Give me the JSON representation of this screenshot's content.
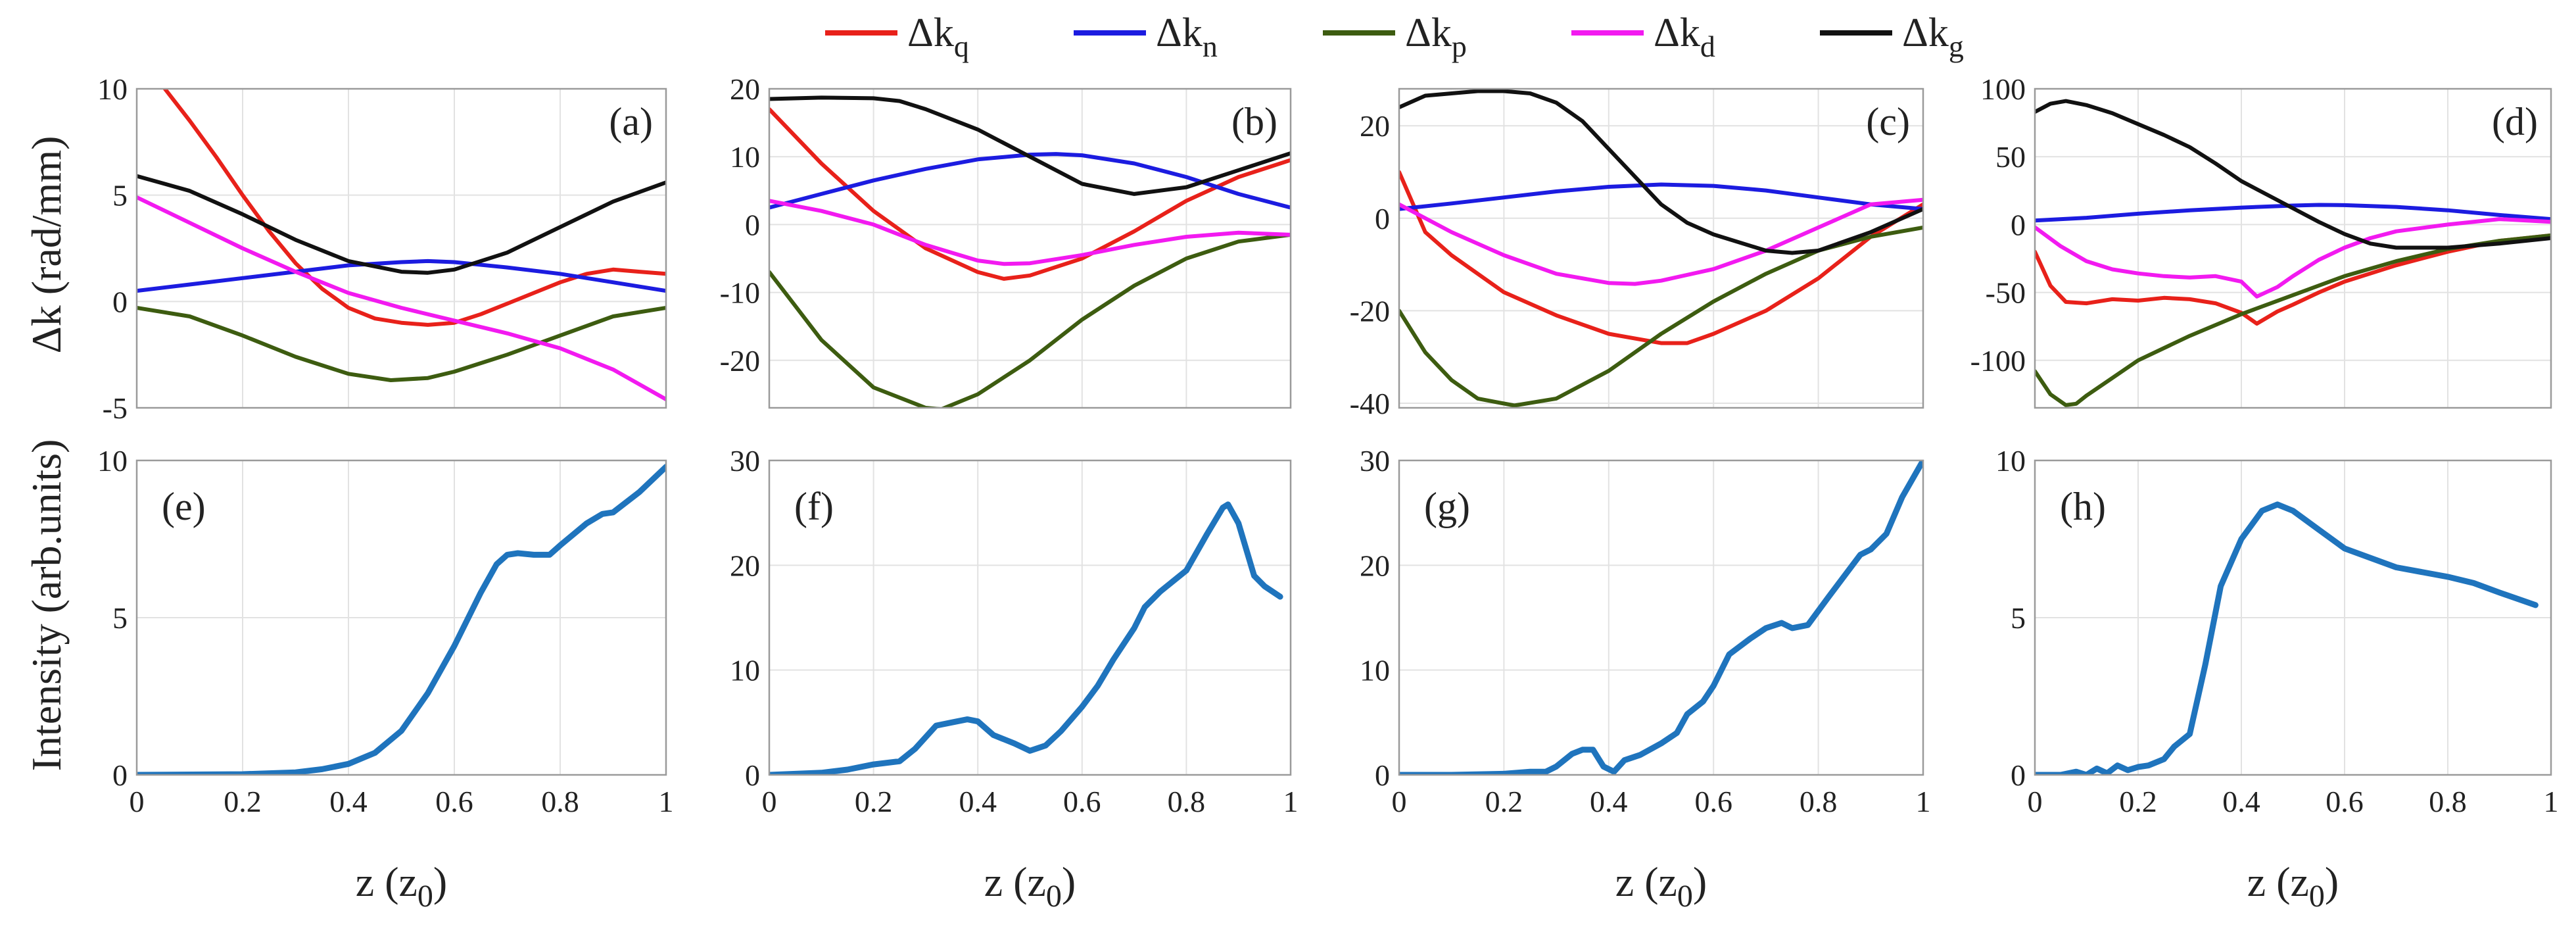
{
  "legend": [
    {
      "name": "Δk_q",
      "base": "Δk",
      "sub": "q",
      "color": "#e8211a"
    },
    {
      "name": "Δk_n",
      "base": "Δk",
      "sub": "n",
      "color": "#1c1ce0"
    },
    {
      "name": "Δk_p",
      "base": "Δk",
      "sub": "p",
      "color": "#3d5c10"
    },
    {
      "name": "Δk_d",
      "base": "Δk",
      "sub": "d",
      "color": "#f21af0"
    },
    {
      "name": "Δk_g",
      "base": "Δk",
      "sub": "g",
      "color": "#111111"
    }
  ],
  "ylabel_top": "Δk (rad/mm)",
  "ylabel_bottom": "Intensity (arb.units)",
  "xlabel": {
    "base": "z (z",
    "sub": "0",
    "end": ")"
  },
  "intensity_color": "#1f74bd",
  "chart_data": [
    {
      "panel": "(a)",
      "type": "line",
      "xlim": [
        0,
        1
      ],
      "ylim": [
        -5,
        10
      ],
      "xticks": [
        "0",
        "0.2",
        "0.4",
        "0.6",
        "0.8",
        "1"
      ],
      "xticks_shown": false,
      "yticks": [
        -5,
        0,
        5,
        10
      ],
      "series": [
        {
          "name": "Δk_q",
          "x": [
            0,
            0.05,
            0.1,
            0.15,
            0.2,
            0.25,
            0.3,
            0.35,
            0.4,
            0.45,
            0.5,
            0.55,
            0.6,
            0.65,
            0.7,
            0.75,
            0.8,
            0.85,
            0.9,
            0.95,
            1.0
          ],
          "y": [
            11,
            10.1,
            8.5,
            6.8,
            5,
            3.3,
            1.8,
            0.6,
            -0.3,
            -0.8,
            -1.0,
            -1.1,
            -1.0,
            -0.6,
            -0.1,
            0.4,
            0.9,
            1.3,
            1.5,
            1.4,
            1.3
          ]
        },
        {
          "name": "Δk_n",
          "x": [
            0,
            0.1,
            0.2,
            0.3,
            0.4,
            0.5,
            0.55,
            0.6,
            0.7,
            0.8,
            0.9,
            1.0
          ],
          "y": [
            0.5,
            0.8,
            1.1,
            1.4,
            1.7,
            1.85,
            1.9,
            1.85,
            1.6,
            1.3,
            0.9,
            0.5
          ]
        },
        {
          "name": "Δk_p",
          "x": [
            0,
            0.1,
            0.2,
            0.3,
            0.4,
            0.48,
            0.55,
            0.6,
            0.7,
            0.8,
            0.9,
            1.0
          ],
          "y": [
            -0.3,
            -0.7,
            -1.6,
            -2.6,
            -3.4,
            -3.7,
            -3.6,
            -3.3,
            -2.5,
            -1.6,
            -0.7,
            -0.3
          ]
        },
        {
          "name": "Δk_d",
          "x": [
            0,
            0.1,
            0.2,
            0.3,
            0.4,
            0.5,
            0.6,
            0.7,
            0.8,
            0.9,
            1.0
          ],
          "y": [
            4.9,
            3.7,
            2.5,
            1.4,
            0.4,
            -0.3,
            -0.9,
            -1.5,
            -2.2,
            -3.2,
            -4.6
          ]
        },
        {
          "name": "Δk_g",
          "x": [
            0,
            0.1,
            0.2,
            0.3,
            0.4,
            0.5,
            0.55,
            0.6,
            0.7,
            0.8,
            0.9,
            1.0
          ],
          "y": [
            5.9,
            5.2,
            4.1,
            2.9,
            1.9,
            1.4,
            1.35,
            1.5,
            2.3,
            3.5,
            4.7,
            5.6
          ]
        }
      ]
    },
    {
      "panel": "(b)",
      "type": "line",
      "xlim": [
        0,
        1
      ],
      "ylim": [
        -27,
        20
      ],
      "xticks": [
        "0",
        "0.2",
        "0.4",
        "0.6",
        "0.8",
        "1"
      ],
      "xticks_shown": false,
      "yticks": [
        -20,
        -10,
        0,
        10,
        20
      ],
      "series": [
        {
          "name": "Δk_q",
          "x": [
            0,
            0.1,
            0.2,
            0.3,
            0.4,
            0.45,
            0.5,
            0.6,
            0.7,
            0.8,
            0.9,
            1.0
          ],
          "y": [
            17,
            9,
            2,
            -3.5,
            -7,
            -8,
            -7.5,
            -5,
            -1,
            3.5,
            7,
            9.5
          ]
        },
        {
          "name": "Δk_n",
          "x": [
            0,
            0.1,
            0.2,
            0.3,
            0.4,
            0.5,
            0.55,
            0.6,
            0.7,
            0.8,
            0.9,
            1.0
          ],
          "y": [
            2.5,
            4.5,
            6.5,
            8.2,
            9.6,
            10.3,
            10.4,
            10.2,
            9,
            7,
            4.5,
            2.5
          ]
        },
        {
          "name": "Δk_p",
          "x": [
            0,
            0.05,
            0.1,
            0.2,
            0.3,
            0.33,
            0.4,
            0.5,
            0.6,
            0.7,
            0.8,
            0.9,
            1.0
          ],
          "y": [
            -7,
            -12,
            -17,
            -24,
            -27,
            -27.2,
            -25,
            -20,
            -14,
            -9,
            -5,
            -2.5,
            -1.5
          ]
        },
        {
          "name": "Δk_d",
          "x": [
            0,
            0.1,
            0.2,
            0.3,
            0.4,
            0.45,
            0.5,
            0.6,
            0.7,
            0.8,
            0.9,
            1.0
          ],
          "y": [
            3.5,
            2,
            0,
            -3,
            -5.3,
            -5.8,
            -5.7,
            -4.5,
            -3,
            -1.8,
            -1.2,
            -1.5
          ]
        },
        {
          "name": "Δk_g",
          "x": [
            0,
            0.1,
            0.2,
            0.25,
            0.3,
            0.4,
            0.5,
            0.6,
            0.7,
            0.8,
            0.9,
            1.0
          ],
          "y": [
            18.5,
            18.7,
            18.6,
            18.2,
            17,
            14,
            10,
            6,
            4.5,
            5.5,
            8,
            10.5
          ]
        }
      ]
    },
    {
      "panel": "(c)",
      "type": "line",
      "xlim": [
        0,
        1
      ],
      "ylim": [
        -41,
        28
      ],
      "xticks": [
        "0",
        "0.2",
        "0.4",
        "0.6",
        "0.8",
        "1"
      ],
      "xticks_shown": false,
      "yticks": [
        -40,
        -20,
        0,
        20
      ],
      "series": [
        {
          "name": "Δk_q",
          "x": [
            0,
            0.05,
            0.1,
            0.2,
            0.3,
            0.4,
            0.5,
            0.55,
            0.6,
            0.7,
            0.8,
            0.9,
            1.0
          ],
          "y": [
            10,
            -3,
            -8,
            -16,
            -21,
            -25,
            -27,
            -27,
            -25,
            -20,
            -13,
            -4,
            3
          ]
        },
        {
          "name": "Δk_n",
          "x": [
            0,
            0.1,
            0.2,
            0.3,
            0.4,
            0.5,
            0.6,
            0.7,
            0.8,
            0.9,
            1.0
          ],
          "y": [
            2,
            3.2,
            4.5,
            5.8,
            6.8,
            7.3,
            7,
            6,
            4.5,
            3,
            2
          ]
        },
        {
          "name": "Δk_p",
          "x": [
            0,
            0.05,
            0.1,
            0.15,
            0.22,
            0.3,
            0.4,
            0.5,
            0.6,
            0.7,
            0.8,
            0.9,
            1.0
          ],
          "y": [
            -20,
            -29,
            -35,
            -39,
            -40.5,
            -39,
            -33,
            -25,
            -18,
            -12,
            -7,
            -4,
            -2
          ]
        },
        {
          "name": "Δk_d",
          "x": [
            0,
            0.1,
            0.2,
            0.3,
            0.4,
            0.45,
            0.5,
            0.6,
            0.7,
            0.8,
            0.9,
            1.0
          ],
          "y": [
            3,
            -3,
            -8,
            -12,
            -14,
            -14.2,
            -13.5,
            -11,
            -7,
            -2,
            3,
            4
          ]
        },
        {
          "name": "Δk_g",
          "x": [
            0,
            0.05,
            0.1,
            0.15,
            0.2,
            0.25,
            0.3,
            0.35,
            0.4,
            0.45,
            0.5,
            0.55,
            0.6,
            0.7,
            0.75,
            0.8,
            0.9,
            1.0
          ],
          "y": [
            24,
            26.5,
            27,
            27.5,
            27.5,
            27,
            25,
            21,
            15,
            9,
            3,
            -1,
            -3.5,
            -7,
            -7.5,
            -7,
            -3,
            2
          ]
        }
      ]
    },
    {
      "panel": "(d)",
      "type": "line",
      "xlim": [
        0,
        1
      ],
      "ylim": [
        -135,
        100
      ],
      "xticks": [
        "0",
        "0.2",
        "0.4",
        "0.6",
        "0.8",
        "1"
      ],
      "xticks_shown": false,
      "yticks": [
        -100,
        -50,
        0,
        50,
        100
      ],
      "series": [
        {
          "name": "Δk_q",
          "x": [
            0,
            0.03,
            0.06,
            0.1,
            0.15,
            0.2,
            0.25,
            0.3,
            0.35,
            0.4,
            0.43,
            0.47,
            0.5,
            0.55,
            0.6,
            0.7,
            0.8,
            0.9,
            1.0
          ],
          "y": [
            -20,
            -45,
            -57,
            -58,
            -55,
            -56,
            -54,
            -55,
            -58,
            -65,
            -73,
            -64,
            -59,
            -50,
            -42,
            -30,
            -20,
            -12,
            -8
          ]
        },
        {
          "name": "Δk_n",
          "x": [
            0,
            0.1,
            0.2,
            0.3,
            0.4,
            0.5,
            0.55,
            0.6,
            0.7,
            0.8,
            0.9,
            1.0
          ],
          "y": [
            3,
            5,
            8,
            10.5,
            12.5,
            14,
            14.5,
            14.3,
            13,
            10.5,
            7,
            4
          ]
        },
        {
          "name": "Δk_p",
          "x": [
            0,
            0.03,
            0.06,
            0.08,
            0.1,
            0.15,
            0.2,
            0.3,
            0.4,
            0.5,
            0.6,
            0.7,
            0.8,
            0.9,
            1.0
          ],
          "y": [
            -108,
            -125,
            -133,
            -132,
            -126,
            -113,
            -100,
            -82,
            -66,
            -52,
            -38,
            -27,
            -18,
            -12,
            -8
          ]
        },
        {
          "name": "Δk_d",
          "x": [
            0,
            0.05,
            0.1,
            0.15,
            0.2,
            0.25,
            0.3,
            0.35,
            0.4,
            0.43,
            0.47,
            0.5,
            0.55,
            0.6,
            0.65,
            0.7,
            0.8,
            0.9,
            1.0
          ],
          "y": [
            -2,
            -16,
            -27,
            -33,
            -36,
            -38,
            -39,
            -38,
            -42,
            -53,
            -46,
            -38,
            -26,
            -17,
            -10,
            -5,
            0,
            4,
            2
          ]
        },
        {
          "name": "Δk_g",
          "x": [
            0,
            0.03,
            0.06,
            0.1,
            0.15,
            0.2,
            0.25,
            0.3,
            0.35,
            0.4,
            0.45,
            0.5,
            0.55,
            0.6,
            0.65,
            0.7,
            0.8,
            0.9,
            1.0
          ],
          "y": [
            83,
            89,
            91,
            88,
            82,
            74,
            66,
            57,
            45,
            32,
            22,
            12,
            2,
            -7,
            -14,
            -17,
            -17,
            -14,
            -10
          ]
        }
      ]
    },
    {
      "panel": "(e)",
      "type": "line",
      "xlim": [
        0,
        1
      ],
      "ylim": [
        0,
        10
      ],
      "xticks": [
        "0",
        "0.2",
        "0.4",
        "0.6",
        "0.8",
        "1"
      ],
      "xticks_shown": true,
      "yticks": [
        0,
        5,
        10
      ],
      "series": [
        {
          "name": "Intensity",
          "x": [
            0,
            0.2,
            0.3,
            0.35,
            0.4,
            0.45,
            0.5,
            0.55,
            0.6,
            0.65,
            0.68,
            0.7,
            0.72,
            0.75,
            0.78,
            0.8,
            0.85,
            0.88,
            0.9,
            0.95,
            1.0
          ],
          "y": [
            0,
            0.02,
            0.08,
            0.18,
            0.35,
            0.7,
            1.4,
            2.6,
            4.1,
            5.8,
            6.7,
            7.0,
            7.05,
            7.0,
            7.0,
            7.3,
            8.0,
            8.3,
            8.35,
            9.0,
            9.8
          ]
        }
      ]
    },
    {
      "panel": "(f)",
      "type": "line",
      "xlim": [
        0,
        1
      ],
      "ylim": [
        0,
        30
      ],
      "xticks": [
        "0",
        "0.2",
        "0.4",
        "0.6",
        "0.8",
        "1"
      ],
      "xticks_shown": true,
      "yticks": [
        0,
        10,
        20,
        30
      ],
      "series": [
        {
          "name": "Intensity",
          "x": [
            0,
            0.1,
            0.15,
            0.2,
            0.25,
            0.28,
            0.32,
            0.35,
            0.38,
            0.4,
            0.43,
            0.47,
            0.5,
            0.53,
            0.56,
            0.6,
            0.63,
            0.66,
            0.7,
            0.72,
            0.75,
            0.8,
            0.84,
            0.87,
            0.88,
            0.9,
            0.93,
            0.95,
            0.98
          ],
          "y": [
            0,
            0.2,
            0.5,
            1.0,
            1.3,
            2.5,
            4.7,
            5.0,
            5.3,
            5.1,
            3.8,
            3.0,
            2.3,
            2.8,
            4.2,
            6.5,
            8.5,
            11,
            14,
            16,
            17.5,
            19.5,
            23,
            25.5,
            25.8,
            24,
            19,
            18,
            17
          ]
        }
      ]
    },
    {
      "panel": "(g)",
      "type": "line",
      "xlim": [
        0,
        1
      ],
      "ylim": [
        0,
        30
      ],
      "xticks": [
        "0",
        "0.2",
        "0.4",
        "0.6",
        "0.8",
        "1"
      ],
      "xticks_shown": true,
      "yticks": [
        0,
        10,
        20,
        30
      ],
      "series": [
        {
          "name": "Intensity",
          "x": [
            0,
            0.1,
            0.2,
            0.25,
            0.28,
            0.3,
            0.33,
            0.35,
            0.37,
            0.39,
            0.41,
            0.43,
            0.46,
            0.5,
            0.53,
            0.55,
            0.58,
            0.6,
            0.63,
            0.67,
            0.7,
            0.73,
            0.75,
            0.78,
            0.82,
            0.85,
            0.88,
            0.9,
            0.93,
            0.96,
            1.0
          ],
          "y": [
            0,
            0,
            0.1,
            0.3,
            0.3,
            0.8,
            2.0,
            2.4,
            2.4,
            0.8,
            0.3,
            1.4,
            1.9,
            3.0,
            4.0,
            5.8,
            7.0,
            8.5,
            11.5,
            13,
            14,
            14.5,
            14,
            14.3,
            17,
            19,
            21,
            21.5,
            23,
            26.5,
            30
          ]
        }
      ]
    },
    {
      "panel": "(h)",
      "type": "line",
      "xlim": [
        0,
        1
      ],
      "ylim": [
        0,
        10
      ],
      "xticks": [
        "0",
        "0.2",
        "0.4",
        "0.6",
        "0.8",
        "1"
      ],
      "xticks_shown": true,
      "yticks": [
        0,
        5,
        10
      ],
      "series": [
        {
          "name": "Intensity",
          "x": [
            0,
            0.05,
            0.08,
            0.1,
            0.12,
            0.14,
            0.16,
            0.18,
            0.2,
            0.22,
            0.25,
            0.27,
            0.3,
            0.33,
            0.36,
            0.4,
            0.44,
            0.47,
            0.5,
            0.55,
            0.6,
            0.7,
            0.8,
            0.85,
            0.9,
            0.97
          ],
          "y": [
            0,
            0,
            0.1,
            0,
            0.2,
            0.05,
            0.3,
            0.15,
            0.25,
            0.3,
            0.5,
            0.9,
            1.3,
            3.5,
            6.0,
            7.5,
            8.4,
            8.6,
            8.4,
            7.8,
            7.2,
            6.6,
            6.3,
            6.1,
            5.8,
            5.4
          ]
        }
      ]
    }
  ]
}
